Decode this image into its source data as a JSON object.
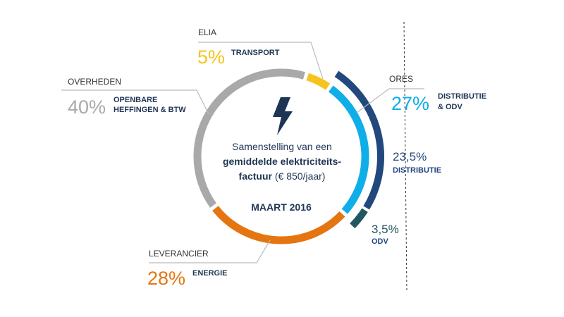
{
  "chart_data": {
    "type": "pie",
    "title": "Samenstelling van een gemiddelde elektriciteitsfactuur (€ 850/jaar)",
    "center": {
      "line1": "Samenstelling van een",
      "line2": "gemiddelde elektriciteits-",
      "line3_bold": "factuur",
      "line3_rest": " (€ 850/jaar)",
      "date": "MAART 2016",
      "icon": "lightning-bolt-icon"
    },
    "slices": [
      {
        "name": "ELIA",
        "percent_label": "5%",
        "value": 5,
        "description": [
          "TRANSPORT"
        ],
        "color": "#F7C31E"
      },
      {
        "name": "ORES",
        "percent_label": "27%",
        "value": 27,
        "description": [
          "DISTRIBUTIE",
          "& ODV"
        ],
        "color": "#0FAEE8"
      },
      {
        "name": "LEVERANCIER",
        "percent_label": "28%",
        "value": 28,
        "description": [
          "ENERGIE"
        ],
        "color": "#E57511"
      },
      {
        "name": "OVERHEDEN",
        "percent_label": "40%",
        "value": 40,
        "description": [
          "OPENBARE",
          "HEFFINGEN & BTW"
        ],
        "color": "#A9A9A9"
      }
    ],
    "breakdown": {
      "parent": "ORES",
      "parts": [
        {
          "percent_label": "23,5%",
          "value": 23.5,
          "name": "DISTRIBUTIE",
          "color": "#22487E"
        },
        {
          "percent_label": "3,5%",
          "value": 3.5,
          "name": "ODV",
          "color": "#23575F"
        }
      ]
    },
    "colors": {
      "text_dark": "#1F3554",
      "text_label": "#333333",
      "leader": "#BBBBBB",
      "dashed": "#333333"
    }
  }
}
